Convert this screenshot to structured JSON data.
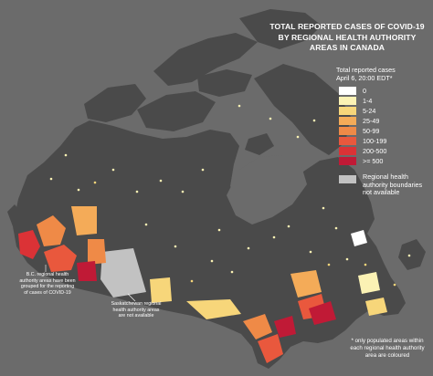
{
  "title": {
    "lines": [
      "TOTAL REPORTED CASES OF COVID-19",
      "BY REGIONAL HEALTH AUTHORITY",
      "AREAS IN CANADA"
    ]
  },
  "legend": {
    "heading_lines": [
      "Total reported cases",
      "April 6, 20:00 EDT*"
    ],
    "items": [
      {
        "label": "0",
        "color": "#ffffff"
      },
      {
        "label": "1-4",
        "color": "#fbf2b4"
      },
      {
        "label": "5-24",
        "color": "#f7d67a"
      },
      {
        "label": "25-49",
        "color": "#f4ab58"
      },
      {
        "label": "50-99",
        "color": "#ef8a47"
      },
      {
        "label": "100-199",
        "color": "#e9583d"
      },
      {
        "label": "200-500",
        "color": "#db3236"
      },
      {
        "label": ">= 500",
        "color": "#c01a36"
      }
    ],
    "not_available_lines": [
      "Regional health",
      "authority boundaries",
      "not available"
    ],
    "not_available_color": "#c2c2c2"
  },
  "notes": {
    "bc_lines": [
      "B.C. regional health",
      "authority areas have been",
      "grouped for the reporting",
      "of cases of COVID-19"
    ],
    "saskatchewan_lines": [
      "Saskatchewan regional",
      "health authority areas",
      "are not available"
    ],
    "populated_lines": [
      "* only populated areas within",
      "each regional health authority",
      "area are coloured"
    ]
  },
  "colors": {
    "background": "#6b6b6b",
    "landmass": "#4a4a4a",
    "boundary": "#5c5c5c"
  }
}
